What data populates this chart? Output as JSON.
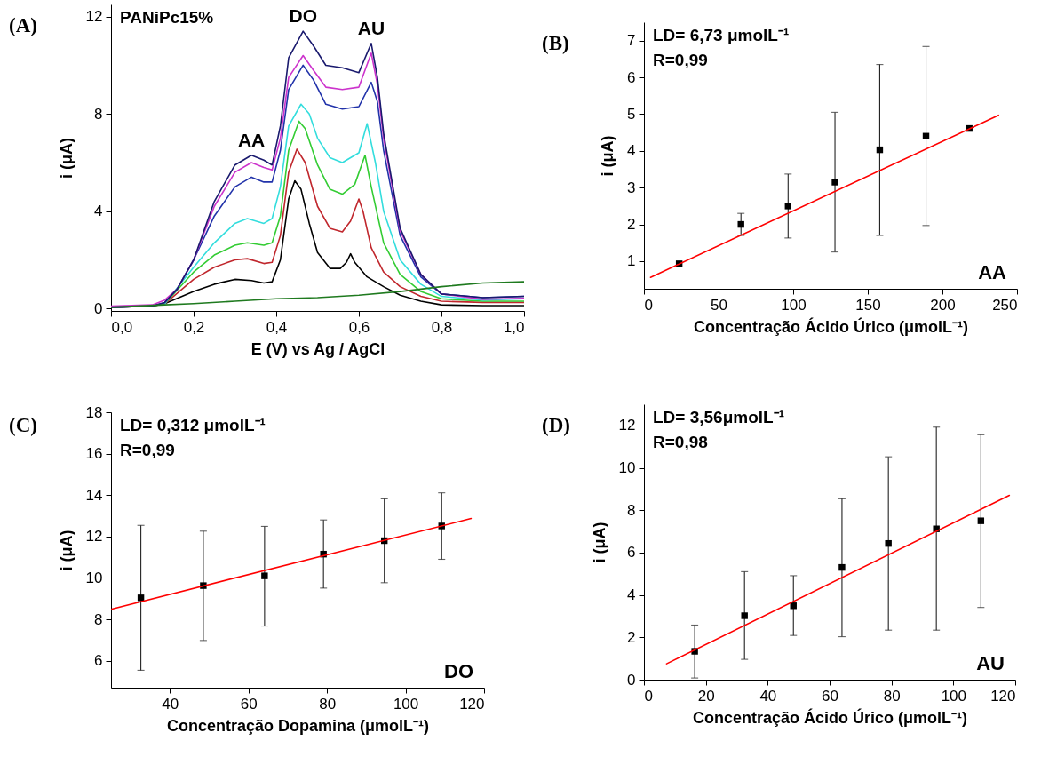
{
  "chart_data": [
    {
      "type": "line",
      "title": "(A)",
      "xlabel": "E (V) vs Ag / AgCl",
      "ylabel": "i (μA)",
      "xlim": [
        0,
        1.0
      ],
      "ylim": [
        -0.1,
        12.5
      ],
      "xticks": [
        {
          "value": 0,
          "label": "0,0"
        },
        {
          "value": 0.2,
          "label": "0,2"
        },
        {
          "value": 0.4,
          "label": "0,4"
        },
        {
          "value": 0.6,
          "label": "0,6"
        },
        {
          "value": 0.8,
          "label": "0,8"
        },
        {
          "value": 1.0,
          "label": "1,0"
        }
      ],
      "yticks": [
        0,
        4,
        8,
        12
      ],
      "annotations": [
        "PANiPc15%",
        {
          "text": "AA",
          "x": 0.34,
          "y": 6.3
        },
        {
          "text": "DO",
          "x": 0.465,
          "y": 11.4
        },
        {
          "text": "AU",
          "x": 0.63,
          "y": 10.9
        }
      ],
      "series": [
        {
          "color": "#000000",
          "x": [
            0,
            0.1,
            0.13,
            0.2,
            0.25,
            0.3,
            0.34,
            0.37,
            0.39,
            0.41,
            0.43,
            0.445,
            0.46,
            0.48,
            0.5,
            0.53,
            0.555,
            0.57,
            0.58,
            0.59,
            0.62,
            0.66,
            0.7,
            0.75,
            0.8,
            0.9,
            1.0
          ],
          "values": [
            0.05,
            0.1,
            0.2,
            0.7,
            1.0,
            1.2,
            1.15,
            1.05,
            1.1,
            2.0,
            4.5,
            5.25,
            4.9,
            3.5,
            2.3,
            1.65,
            1.65,
            1.9,
            2.25,
            1.9,
            1.3,
            0.9,
            0.55,
            0.3,
            0.15,
            0.12,
            0.12
          ]
        },
        {
          "color": "#c0272d",
          "x": [
            0,
            0.1,
            0.13,
            0.2,
            0.25,
            0.3,
            0.33,
            0.37,
            0.39,
            0.41,
            0.43,
            0.45,
            0.47,
            0.5,
            0.53,
            0.56,
            0.58,
            0.6,
            0.61,
            0.63,
            0.66,
            0.7,
            0.75,
            0.8,
            0.9,
            1.0
          ],
          "values": [
            0.05,
            0.1,
            0.2,
            1.2,
            1.7,
            2.0,
            2.05,
            1.85,
            1.9,
            3.0,
            5.6,
            6.55,
            6.0,
            4.2,
            3.3,
            3.15,
            3.6,
            4.5,
            4.0,
            2.5,
            1.5,
            0.9,
            0.5,
            0.3,
            0.25,
            0.25
          ]
        },
        {
          "color": "#33cc33",
          "x": [
            0,
            0.1,
            0.13,
            0.2,
            0.25,
            0.3,
            0.33,
            0.37,
            0.39,
            0.41,
            0.43,
            0.455,
            0.47,
            0.5,
            0.53,
            0.56,
            0.59,
            0.615,
            0.63,
            0.66,
            0.7,
            0.75,
            0.8,
            0.9,
            1.0
          ],
          "values": [
            0.05,
            0.1,
            0.2,
            1.5,
            2.2,
            2.6,
            2.7,
            2.6,
            2.7,
            3.8,
            6.5,
            7.7,
            7.4,
            5.9,
            4.9,
            4.7,
            5.1,
            6.3,
            5.0,
            2.7,
            1.4,
            0.7,
            0.4,
            0.3,
            0.3
          ]
        },
        {
          "color": "#33dddd",
          "x": [
            0.13,
            0.2,
            0.25,
            0.3,
            0.33,
            0.37,
            0.39,
            0.41,
            0.43,
            0.46,
            0.48,
            0.5,
            0.53,
            0.56,
            0.6,
            0.62,
            0.64,
            0.66,
            0.7,
            0.75,
            0.8,
            0.9,
            1.0
          ],
          "values": [
            0.2,
            1.7,
            2.7,
            3.5,
            3.7,
            3.5,
            3.7,
            5.0,
            7.5,
            8.4,
            8.0,
            7.0,
            6.2,
            6.0,
            6.4,
            7.6,
            6.0,
            4.0,
            2.0,
            1.0,
            0.5,
            0.35,
            0.4
          ]
        },
        {
          "color": "#2233aa",
          "x": [
            0,
            0.1,
            0.13,
            0.16,
            0.2,
            0.25,
            0.3,
            0.34,
            0.37,
            0.39,
            0.41,
            0.43,
            0.465,
            0.49,
            0.52,
            0.56,
            0.6,
            0.63,
            0.645,
            0.66,
            0.7,
            0.75,
            0.8,
            0.9,
            1.0
          ],
          "values": [
            0.05,
            0.1,
            0.25,
            0.8,
            2.0,
            3.8,
            5.0,
            5.4,
            5.2,
            5.2,
            6.5,
            9.0,
            10.0,
            9.4,
            8.4,
            8.2,
            8.3,
            9.3,
            8.5,
            6.5,
            3.0,
            1.3,
            0.6,
            0.45,
            0.5
          ]
        },
        {
          "color": "#cc33cc",
          "x": [
            0,
            0.1,
            0.13,
            0.16,
            0.2,
            0.25,
            0.3,
            0.34,
            0.37,
            0.39,
            0.41,
            0.43,
            0.465,
            0.49,
            0.52,
            0.56,
            0.6,
            0.63,
            0.645,
            0.66,
            0.7,
            0.75,
            0.8,
            0.9,
            1.0
          ],
          "values": [
            0.1,
            0.15,
            0.35,
            0.8,
            2.0,
            4.2,
            5.6,
            6.0,
            5.8,
            5.7,
            7.0,
            9.5,
            10.4,
            9.8,
            9.1,
            9.0,
            9.1,
            10.5,
            9.2,
            7.0,
            3.2,
            1.4,
            0.6,
            0.38,
            0.42
          ]
        },
        {
          "color": "#1a1a6e",
          "x": [
            0,
            0.1,
            0.13,
            0.16,
            0.2,
            0.25,
            0.3,
            0.34,
            0.37,
            0.39,
            0.41,
            0.43,
            0.465,
            0.49,
            0.52,
            0.56,
            0.6,
            0.63,
            0.645,
            0.66,
            0.7,
            0.75,
            0.8,
            0.9,
            1.0
          ],
          "values": [
            0.05,
            0.1,
            0.25,
            0.8,
            2.0,
            4.4,
            5.9,
            6.3,
            6.1,
            5.9,
            7.5,
            10.3,
            11.4,
            10.8,
            10.0,
            9.9,
            9.7,
            10.9,
            9.5,
            7.2,
            3.3,
            1.4,
            0.6,
            0.45,
            0.5
          ]
        },
        {
          "color": "#1f7a1f",
          "x": [
            0,
            0.13,
            0.2,
            0.3,
            0.4,
            0.5,
            0.6,
            0.7,
            0.8,
            0.9,
            1.0
          ],
          "values": [
            0.05,
            0.15,
            0.2,
            0.3,
            0.4,
            0.45,
            0.55,
            0.7,
            0.9,
            1.05,
            1.1
          ]
        }
      ]
    },
    {
      "type": "scatter",
      "title": "(B)",
      "xlabel": "Concentração Ácido Úrico (μmolL⁻¹)",
      "ylabel": "i (μA)",
      "xlim": [
        0,
        250
      ],
      "ylim": [
        0.25,
        7.5
      ],
      "xticks": [
        0,
        50,
        100,
        150,
        200,
        250
      ],
      "yticks": [
        1,
        2,
        3,
        4,
        5,
        6,
        7
      ],
      "annotations": [
        "LD= 6,73 μmolL⁻¹",
        "R=0,99",
        "AA"
      ],
      "series": [
        {
          "color": "#000000",
          "marker": "square",
          "x": [
            23.6,
            65,
            96.6,
            128,
            158,
            189,
            218
          ],
          "values": [
            0.93,
            2.0,
            2.5,
            3.15,
            4.03,
            4.4,
            4.61
          ],
          "errors": [
            null,
            [
              1.7,
              2.3
            ],
            [
              1.63,
              3.37
            ],
            [
              1.25,
              5.05
            ],
            [
              1.7,
              6.35
            ],
            [
              1.97,
              6.84
            ],
            null
          ]
        },
        {
          "type": "line",
          "color": "#ff0000",
          "x": [
            4.4,
            237.6
          ],
          "values": [
            0.56,
            4.97
          ]
        }
      ]
    },
    {
      "type": "scatter",
      "title": "(C)",
      "xlabel": "Concentração Dopamina (μmolL⁻¹)",
      "ylabel": "i (μA)",
      "xlim": [
        25,
        120
      ],
      "ylim": [
        4.7,
        18
      ],
      "xticks": [
        40,
        60,
        80,
        100,
        120
      ],
      "yticks": [
        6,
        8,
        10,
        12,
        14,
        16,
        18
      ],
      "annotations": [
        "LD= 0,312 μmolL⁻¹",
        "R=0,99",
        "DO"
      ],
      "series": [
        {
          "color": "#000000",
          "marker": "square",
          "x": [
            32.6,
            48.5,
            64.1,
            79.1,
            94.6,
            109.2
          ],
          "values": [
            9.04,
            9.63,
            10.1,
            11.15,
            11.8,
            12.51
          ],
          "errors": [
            [
              5.54,
              12.54
            ],
            [
              6.98,
              12.26
            ],
            [
              7.68,
              12.49
            ],
            [
              9.51,
              12.8
            ],
            [
              9.77,
              13.82
            ],
            [
              10.9,
              14.11
            ]
          ]
        },
        {
          "type": "line",
          "color": "#ff0000",
          "x": [
            25.2,
            116.7
          ],
          "values": [
            8.5,
            12.87
          ]
        }
      ]
    },
    {
      "type": "scatter",
      "title": "(D)",
      "xlabel": "Concentração Ácido Úrico (μmolL⁻¹)",
      "ylabel": "i (μA)",
      "xlim": [
        0,
        120
      ],
      "ylim": [
        0,
        13
      ],
      "xticks": [
        0,
        20,
        40,
        60,
        80,
        100,
        120
      ],
      "yticks": [
        0,
        2,
        4,
        6,
        8,
        10,
        12
      ],
      "annotations": [
        "LD= 3,56μmolL⁻¹",
        "R=0,98",
        "AU"
      ],
      "series": [
        {
          "color": "#000000",
          "marker": "square",
          "x": [
            16.4,
            32.5,
            48.3,
            64.0,
            79.0,
            94.5,
            108.9
          ],
          "values": [
            1.34,
            3.02,
            3.49,
            5.3,
            6.43,
            7.12,
            7.5
          ],
          "errors": [
            [
              0.08,
              2.58
            ],
            [
              0.96,
              5.1
            ],
            [
              2.09,
              4.91
            ],
            [
              2.03,
              8.54
            ],
            [
              2.34,
              10.52
            ],
            [
              2.34,
              11.92
            ],
            [
              3.41,
              11.56
            ]
          ]
        },
        {
          "type": "line",
          "color": "#ff0000",
          "x": [
            7.3,
            118.1
          ],
          "values": [
            0.75,
            8.7
          ]
        }
      ]
    }
  ]
}
